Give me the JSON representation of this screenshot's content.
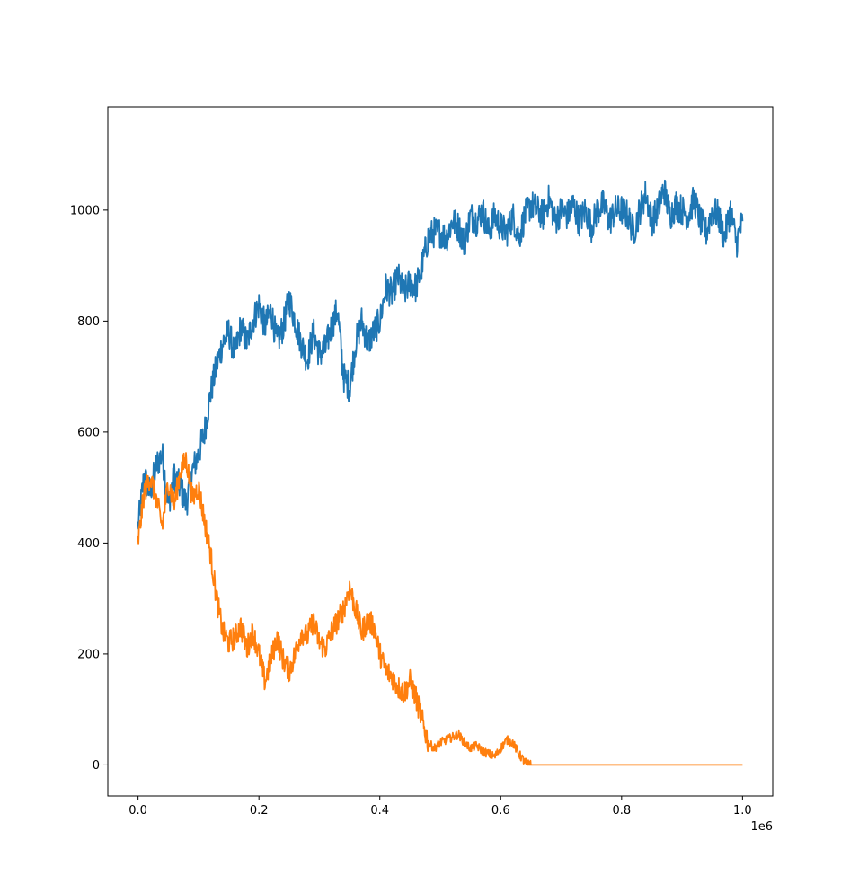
{
  "chart_data": {
    "type": "line",
    "title": "",
    "xlabel": "",
    "ylabel": "",
    "x_offset_text": "1e6",
    "xlim": [
      -0.05,
      1.05
    ],
    "ylim": [
      -56,
      1186
    ],
    "x_ticks": [
      0.0,
      0.2,
      0.4,
      0.6,
      0.8,
      1.0
    ],
    "x_tick_labels": [
      "0.0",
      "0.2",
      "0.4",
      "0.6",
      "0.8",
      "1.0"
    ],
    "y_ticks": [
      0,
      200,
      400,
      600,
      800,
      1000
    ],
    "y_tick_labels": [
      "0",
      "200",
      "400",
      "600",
      "800",
      "1000"
    ],
    "grid": false,
    "legend": "none",
    "series": [
      {
        "color": "#1f77b4",
        "x": [
          0.0,
          0.01,
          0.02,
          0.03,
          0.04,
          0.05,
          0.06,
          0.07,
          0.08,
          0.09,
          0.1,
          0.11,
          0.12,
          0.13,
          0.14,
          0.15,
          0.16,
          0.17,
          0.18,
          0.19,
          0.2,
          0.21,
          0.22,
          0.23,
          0.24,
          0.25,
          0.26,
          0.27,
          0.28,
          0.29,
          0.3,
          0.31,
          0.32,
          0.33,
          0.34,
          0.35,
          0.36,
          0.37,
          0.38,
          0.39,
          0.4,
          0.41,
          0.42,
          0.43,
          0.44,
          0.45,
          0.46,
          0.47,
          0.48,
          0.49,
          0.5,
          0.51,
          0.52,
          0.53,
          0.54,
          0.55,
          0.56,
          0.57,
          0.58,
          0.59,
          0.6,
          0.61,
          0.62,
          0.63,
          0.64,
          0.65,
          0.66,
          0.67,
          0.68,
          0.69,
          0.7,
          0.71,
          0.72,
          0.73,
          0.74,
          0.75,
          0.76,
          0.77,
          0.78,
          0.79,
          0.8,
          0.81,
          0.82,
          0.83,
          0.84,
          0.85,
          0.86,
          0.87,
          0.88,
          0.89,
          0.9,
          0.91,
          0.92,
          0.93,
          0.94,
          0.95,
          0.96,
          0.97,
          0.98,
          0.99,
          1.0
        ],
        "y": [
          430,
          520,
          490,
          540,
          560,
          470,
          520,
          500,
          470,
          530,
          560,
          600,
          670,
          720,
          760,
          780,
          740,
          790,
          760,
          800,
          830,
          790,
          820,
          760,
          790,
          840,
          800,
          760,
          730,
          780,
          740,
          750,
          790,
          820,
          700,
          680,
          760,
          800,
          760,
          780,
          800,
          860,
          850,
          880,
          850,
          870,
          860,
          900,
          950,
          960,
          960,
          950,
          980,
          970,
          940,
          990,
          980,
          1000,
          960,
          990,
          970,
          960,
          990,
          950,
          990,
          1010,
          1000,
          990,
          1020,
          980,
          1000,
          990,
          1010,
          980,
          1000,
          970,
          1000,
          1010,
          980,
          1000,
          1000,
          990,
          960,
          1000,
          1030,
          980,
          1000,
          1040,
          990,
          1010,
          1000,
          990,
          1020,
          980,
          960,
          1000,
          990,
          950,
          1000,
          940,
          980
        ]
      },
      {
        "color": "#ff7f0e",
        "x": [
          0.0,
          0.01,
          0.02,
          0.03,
          0.04,
          0.05,
          0.06,
          0.07,
          0.08,
          0.09,
          0.1,
          0.11,
          0.12,
          0.13,
          0.14,
          0.15,
          0.16,
          0.17,
          0.18,
          0.19,
          0.2,
          0.21,
          0.22,
          0.23,
          0.24,
          0.25,
          0.26,
          0.27,
          0.28,
          0.29,
          0.3,
          0.31,
          0.32,
          0.33,
          0.34,
          0.35,
          0.36,
          0.37,
          0.38,
          0.39,
          0.4,
          0.41,
          0.42,
          0.43,
          0.44,
          0.45,
          0.46,
          0.47,
          0.48,
          0.49,
          0.5,
          0.51,
          0.52,
          0.53,
          0.54,
          0.55,
          0.56,
          0.57,
          0.58,
          0.59,
          0.6,
          0.61,
          0.62,
          0.63,
          0.64,
          0.645,
          0.65,
          1.0
        ],
        "y": [
          400,
          490,
          520,
          480,
          430,
          510,
          470,
          530,
          550,
          480,
          500,
          440,
          380,
          300,
          240,
          220,
          230,
          250,
          210,
          240,
          200,
          150,
          190,
          230,
          190,
          170,
          200,
          240,
          230,
          260,
          220,
          210,
          240,
          260,
          280,
          320,
          280,
          240,
          260,
          250,
          200,
          170,
          160,
          140,
          130,
          150,
          120,
          80,
          40,
          30,
          40,
          45,
          50,
          55,
          40,
          30,
          35,
          25,
          20,
          15,
          30,
          45,
          40,
          20,
          5,
          2,
          0,
          0
        ]
      }
    ]
  }
}
